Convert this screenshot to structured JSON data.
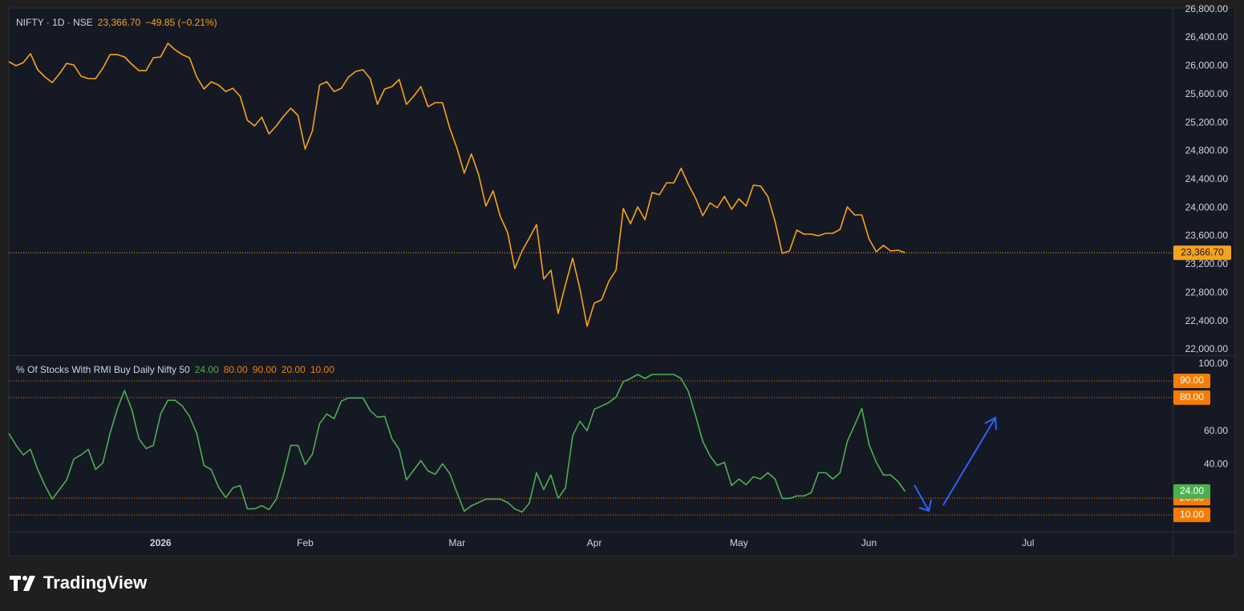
{
  "chart_data": [
    {
      "type": "line",
      "title": "NIFTY · 1D · NSE",
      "last_label": "23,366.70",
      "change_label": "−49.85 (−0.21%)",
      "color": "#f7a21b",
      "ylim": [
        21921,
        26819
      ],
      "yticks": [
        {
          "value": 22000,
          "label": "22,000.00"
        },
        {
          "value": 22400,
          "label": "22,400.00"
        },
        {
          "value": 22800,
          "label": "22,800.00"
        },
        {
          "value": 23200,
          "label": "23,200.00"
        },
        {
          "value": 23600,
          "label": "23,600.00"
        },
        {
          "value": 24000,
          "label": "24,000.00"
        },
        {
          "value": 24400,
          "label": "24,400.00"
        },
        {
          "value": 24800,
          "label": "24,800.00"
        },
        {
          "value": 25200,
          "label": "25,200.00"
        },
        {
          "value": 25600,
          "label": "25,600.00"
        },
        {
          "value": 26000,
          "label": "26,000.00"
        },
        {
          "value": 26400,
          "label": "26,400.00"
        },
        {
          "value": 26800,
          "label": "26,800.00"
        }
      ],
      "values": [
        26061,
        26004,
        26049,
        26174,
        25948,
        25846,
        25767,
        25891,
        26038,
        26015,
        25857,
        25823,
        25823,
        25970,
        26162,
        26162,
        26129,
        26027,
        25936,
        25936,
        26117,
        26129,
        26321,
        26230,
        26162,
        26117,
        25846,
        25676,
        25778,
        25733,
        25642,
        25687,
        25574,
        25235,
        25156,
        25280,
        25043,
        25156,
        25292,
        25405,
        25303,
        24828,
        25088,
        25733,
        25778,
        25642,
        25687,
        25846,
        25925,
        25948,
        25823,
        25461,
        25676,
        25710,
        25812,
        25461,
        25574,
        25710,
        25427,
        25484,
        25484,
        25122,
        24839,
        24489,
        24760,
        24466,
        24025,
        24240,
        23878,
        23652,
        23143,
        23392,
        23573,
        23765,
        22996,
        23120,
        22509,
        22917,
        23290,
        22860,
        22328,
        22656,
        22702,
        22962,
        23120,
        23991,
        23776,
        24014,
        23833,
        24217,
        24183,
        24353,
        24353,
        24557,
        24330,
        24138,
        23889,
        24070,
        24002,
        24161,
        23980,
        24127,
        24025,
        24319,
        24308,
        24161,
        23810,
        23358,
        23392,
        23686,
        23629,
        23629,
        23607,
        23640,
        23640,
        23697,
        24014,
        23901,
        23901,
        23561,
        23381,
        23471,
        23392,
        23403,
        23366.7,
        null,
        null,
        null,
        null,
        null,
        null,
        null,
        null,
        null,
        null,
        null,
        null,
        null,
        null,
        null,
        null,
        null,
        null,
        null,
        null,
        null,
        null,
        null,
        null,
        null,
        null,
        null,
        null,
        null,
        null,
        null,
        null,
        null,
        null,
        null,
        null
      ]
    },
    {
      "type": "line",
      "title": "% Of Stocks With RMI Buy Daily Nifty 50",
      "last_label": "24.00",
      "color": "#4caf50",
      "level_color": "#f57c00",
      "ylim": [
        0,
        105.3
      ],
      "yticks": [
        {
          "value": 40,
          "label": "40.00"
        },
        {
          "value": 60,
          "label": "60.00"
        },
        {
          "value": 100,
          "label": "100.00"
        }
      ],
      "levels": [
        {
          "value": 80,
          "label": "80.00"
        },
        {
          "value": 90,
          "label": "90.00"
        },
        {
          "value": 20,
          "label": "20.00"
        },
        {
          "value": 10,
          "label": "10.00"
        }
      ],
      "categories": [
        null,
        null,
        null,
        null,
        null,
        null,
        null,
        null,
        null,
        null,
        null,
        null,
        null,
        null,
        null,
        null,
        null,
        null,
        null,
        null,
        null,
        "2026",
        null,
        null,
        null,
        null,
        null,
        null,
        null,
        null,
        null,
        null,
        null,
        null,
        null,
        null,
        null,
        null,
        null,
        null,
        null,
        "Feb",
        null,
        null,
        null,
        null,
        null,
        null,
        null,
        null,
        null,
        null,
        null,
        null,
        null,
        null,
        null,
        null,
        null,
        null,
        null,
        null,
        "Mar",
        null,
        null,
        null,
        null,
        null,
        null,
        null,
        null,
        null,
        null,
        null,
        null,
        null,
        null,
        null,
        null,
        null,
        null,
        "Apr",
        null,
        null,
        null,
        null,
        null,
        null,
        null,
        null,
        null,
        null,
        null,
        null,
        null,
        null,
        null,
        null,
        null,
        null,
        null,
        "May",
        null,
        null,
        null,
        null,
        null,
        null,
        null,
        null,
        null,
        null,
        null,
        null,
        null,
        null,
        null,
        null,
        null,
        "Jun",
        null,
        null,
        null,
        null,
        null,
        null,
        null,
        null,
        null,
        null,
        null,
        null,
        null,
        null,
        null,
        null,
        null,
        null,
        null,
        null,
        null,
        "Jul",
        null,
        null,
        null,
        null,
        null,
        null,
        null,
        null,
        null,
        null,
        null,
        null,
        null,
        null,
        null,
        null,
        null,
        null,
        null
      ],
      "values": [
        58.7,
        51.5,
        45.8,
        49.1,
        37.1,
        27.5,
        19.4,
        25.1,
        30.9,
        43.4,
        45.8,
        49.1,
        37.1,
        41,
        58.7,
        73.1,
        84.2,
        73.1,
        55.4,
        49.6,
        51.5,
        70.2,
        78.4,
        78.4,
        75,
        68.8,
        58.7,
        39.5,
        37.1,
        26.6,
        20.3,
        26.1,
        27.5,
        13.6,
        13.6,
        15.5,
        13.1,
        19.4,
        33.8,
        51.5,
        51.5,
        40,
        46.2,
        64.5,
        70.2,
        67.4,
        77.9,
        79.8,
        79.8,
        79.8,
        72.2,
        68.3,
        68.8,
        55.4,
        49.1,
        30.9,
        36.6,
        42.4,
        36.2,
        34.2,
        40.5,
        34.7,
        23.2,
        12.2,
        15.5,
        17.4,
        19.4,
        19.4,
        19.4,
        17.4,
        13.6,
        11.7,
        17,
        35.2,
        25.1,
        33.8,
        19.8,
        26.1,
        57.3,
        65.9,
        60.2,
        73.1,
        75,
        77,
        80.3,
        89.4,
        91.4,
        93.8,
        91.4,
        93.8,
        93.8,
        93.8,
        93.8,
        91.4,
        83.7,
        69.3,
        53.9,
        45.3,
        39.5,
        41.4,
        27.5,
        31.4,
        28,
        32.8,
        31.4,
        35.2,
        31.4,
        19.8,
        19.8,
        21.3,
        21.3,
        23.2,
        35.2,
        35.2,
        31.4,
        35.2,
        53.9,
        63.5,
        73.6,
        52,
        41.4,
        33.8,
        33.8,
        29.9,
        24,
        null,
        null,
        null,
        null,
        null,
        null,
        null,
        null,
        null,
        null,
        null,
        null,
        null,
        null,
        null,
        null,
        null,
        null,
        null,
        null,
        null,
        null,
        null,
        null,
        null,
        null,
        null,
        null,
        null,
        null,
        null,
        null,
        null,
        null,
        null,
        null
      ]
    }
  ],
  "branding": "TradingView"
}
